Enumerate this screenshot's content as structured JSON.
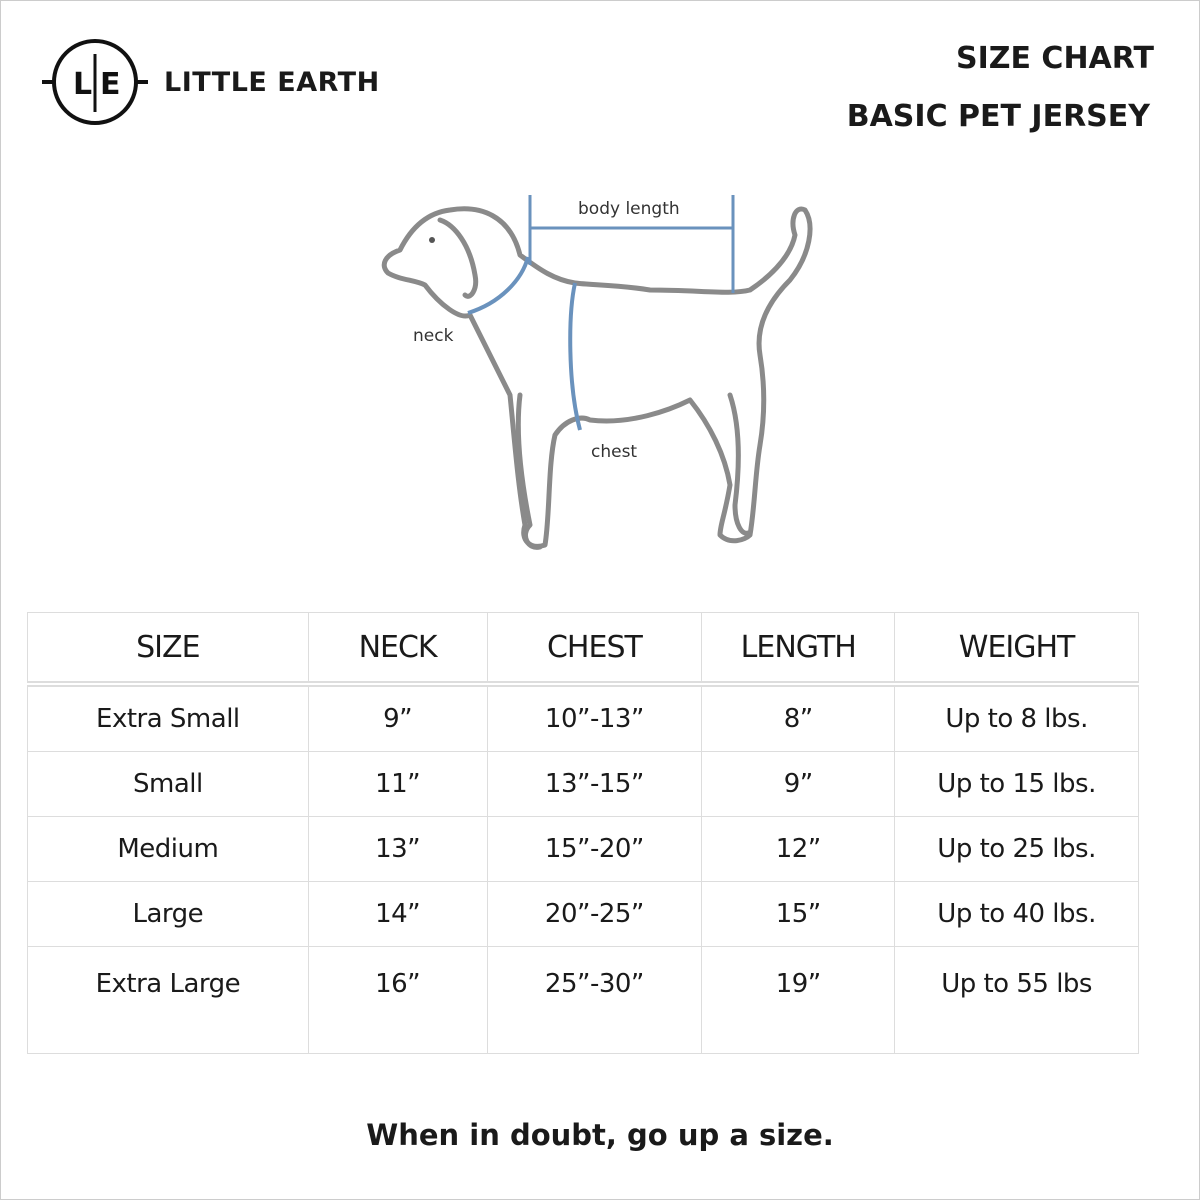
{
  "brand": {
    "logo_letters": "L|E",
    "name": "LITTLE EARTH"
  },
  "header": {
    "title": "SIZE CHART",
    "subtitle": "BASIC PET JERSEY"
  },
  "diagram": {
    "labels": {
      "body_length": "body length",
      "neck": "neck",
      "chest": "chest"
    },
    "accent_color": "#6a92bd"
  },
  "table": {
    "columns": [
      "SIZE",
      "NECK",
      "CHEST",
      "LENGTH",
      "WEIGHT"
    ],
    "rows": [
      [
        "Extra Small",
        "9”",
        "10”-13”",
        "8”",
        "Up to 8 lbs."
      ],
      [
        "Small",
        "11”",
        "13”-15”",
        "9”",
        "Up to 15 lbs."
      ],
      [
        "Medium",
        "13”",
        "15”-20”",
        "12”",
        "Up to 25 lbs."
      ],
      [
        "Large",
        "14”",
        "20”-25”",
        "15”",
        "Up to 40 lbs."
      ],
      [
        "Extra Large",
        "16”",
        "25”-30”",
        "19”",
        "Up to 55 lbs"
      ]
    ]
  },
  "footer": {
    "note": "When in doubt, go up a size."
  }
}
